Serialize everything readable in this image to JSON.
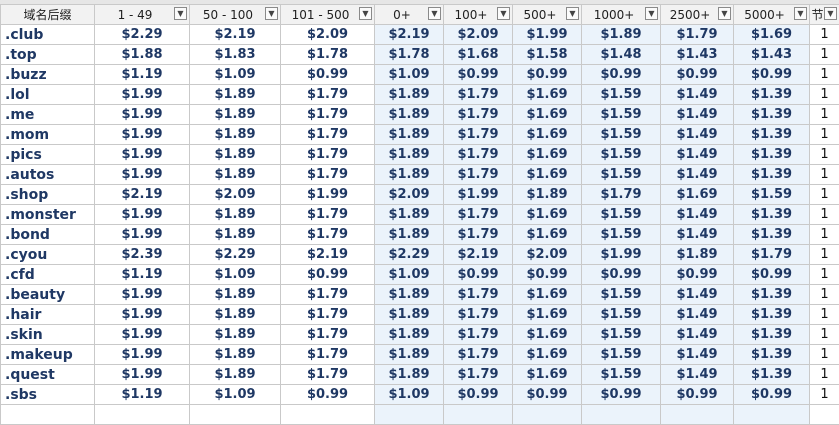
{
  "headers": [
    {
      "label": "域名后缀",
      "filter": false
    },
    {
      "label": "1 - 49",
      "filter": true
    },
    {
      "label": "50 - 100",
      "filter": true
    },
    {
      "label": "101 - 500",
      "filter": true
    },
    {
      "label": "0+",
      "filter": true
    },
    {
      "label": "100+",
      "filter": true
    },
    {
      "label": "500+",
      "filter": true
    },
    {
      "label": "1000+",
      "filter": true
    },
    {
      "label": "2500+",
      "filter": true
    },
    {
      "label": "5000+",
      "filter": true
    },
    {
      "label": "节",
      "filter": true
    }
  ],
  "filter_icon": "dropdown-arrow-icon",
  "highlight_color": "#ebf3fb",
  "text_color": "#1f3864",
  "rows": [
    {
      "tld": ".club",
      "prices": [
        "$2.29",
        "$2.19",
        "$2.09",
        "$2.19",
        "$2.09",
        "$1.99",
        "$1.89",
        "$1.79",
        "$1.69"
      ],
      "year": "1"
    },
    {
      "tld": ".top",
      "prices": [
        "$1.88",
        "$1.83",
        "$1.78",
        "$1.78",
        "$1.68",
        "$1.58",
        "$1.48",
        "$1.43",
        "$1.43"
      ],
      "year": "1"
    },
    {
      "tld": ".buzz",
      "prices": [
        "$1.19",
        "$1.09",
        "$0.99",
        "$1.09",
        "$0.99",
        "$0.99",
        "$0.99",
        "$0.99",
        "$0.99"
      ],
      "year": "1"
    },
    {
      "tld": ".lol",
      "prices": [
        "$1.99",
        "$1.89",
        "$1.79",
        "$1.89",
        "$1.79",
        "$1.69",
        "$1.59",
        "$1.49",
        "$1.39"
      ],
      "year": "1"
    },
    {
      "tld": ".me",
      "prices": [
        "$1.99",
        "$1.89",
        "$1.79",
        "$1.89",
        "$1.79",
        "$1.69",
        "$1.59",
        "$1.49",
        "$1.39"
      ],
      "year": "1"
    },
    {
      "tld": ".mom",
      "prices": [
        "$1.99",
        "$1.89",
        "$1.79",
        "$1.89",
        "$1.79",
        "$1.69",
        "$1.59",
        "$1.49",
        "$1.39"
      ],
      "year": "1"
    },
    {
      "tld": ".pics",
      "prices": [
        "$1.99",
        "$1.89",
        "$1.79",
        "$1.89",
        "$1.79",
        "$1.69",
        "$1.59",
        "$1.49",
        "$1.39"
      ],
      "year": "1"
    },
    {
      "tld": ".autos",
      "prices": [
        "$1.99",
        "$1.89",
        "$1.79",
        "$1.89",
        "$1.79",
        "$1.69",
        "$1.59",
        "$1.49",
        "$1.39"
      ],
      "year": "1"
    },
    {
      "tld": ".shop",
      "prices": [
        "$2.19",
        "$2.09",
        "$1.99",
        "$2.09",
        "$1.99",
        "$1.89",
        "$1.79",
        "$1.69",
        "$1.59"
      ],
      "year": "1"
    },
    {
      "tld": ".monster",
      "prices": [
        "$1.99",
        "$1.89",
        "$1.79",
        "$1.89",
        "$1.79",
        "$1.69",
        "$1.59",
        "$1.49",
        "$1.39"
      ],
      "year": "1"
    },
    {
      "tld": ".bond",
      "prices": [
        "$1.99",
        "$1.89",
        "$1.79",
        "$1.89",
        "$1.79",
        "$1.69",
        "$1.59",
        "$1.49",
        "$1.39"
      ],
      "year": "1"
    },
    {
      "tld": ".cyou",
      "prices": [
        "$2.39",
        "$2.29",
        "$2.19",
        "$2.29",
        "$2.19",
        "$2.09",
        "$1.99",
        "$1.89",
        "$1.79"
      ],
      "year": "1"
    },
    {
      "tld": ".cfd",
      "prices": [
        "$1.19",
        "$1.09",
        "$0.99",
        "$1.09",
        "$0.99",
        "$0.99",
        "$0.99",
        "$0.99",
        "$0.99"
      ],
      "year": "1"
    },
    {
      "tld": ".beauty",
      "prices": [
        "$1.99",
        "$1.89",
        "$1.79",
        "$1.89",
        "$1.79",
        "$1.69",
        "$1.59",
        "$1.49",
        "$1.39"
      ],
      "year": "1"
    },
    {
      "tld": ".hair",
      "prices": [
        "$1.99",
        "$1.89",
        "$1.79",
        "$1.89",
        "$1.79",
        "$1.69",
        "$1.59",
        "$1.49",
        "$1.39"
      ],
      "year": "1"
    },
    {
      "tld": ".skin",
      "prices": [
        "$1.99",
        "$1.89",
        "$1.79",
        "$1.89",
        "$1.79",
        "$1.69",
        "$1.59",
        "$1.49",
        "$1.39"
      ],
      "year": "1"
    },
    {
      "tld": ".makeup",
      "prices": [
        "$1.99",
        "$1.89",
        "$1.79",
        "$1.89",
        "$1.79",
        "$1.69",
        "$1.59",
        "$1.49",
        "$1.39"
      ],
      "year": "1"
    },
    {
      "tld": ".quest",
      "prices": [
        "$1.99",
        "$1.89",
        "$1.79",
        "$1.89",
        "$1.79",
        "$1.69",
        "$1.59",
        "$1.49",
        "$1.39"
      ],
      "year": "1"
    },
    {
      "tld": ".sbs",
      "prices": [
        "$1.19",
        "$1.09",
        "$0.99",
        "$1.09",
        "$0.99",
        "$0.99",
        "$0.99",
        "$0.99",
        "$0.99"
      ],
      "year": "1"
    }
  ]
}
